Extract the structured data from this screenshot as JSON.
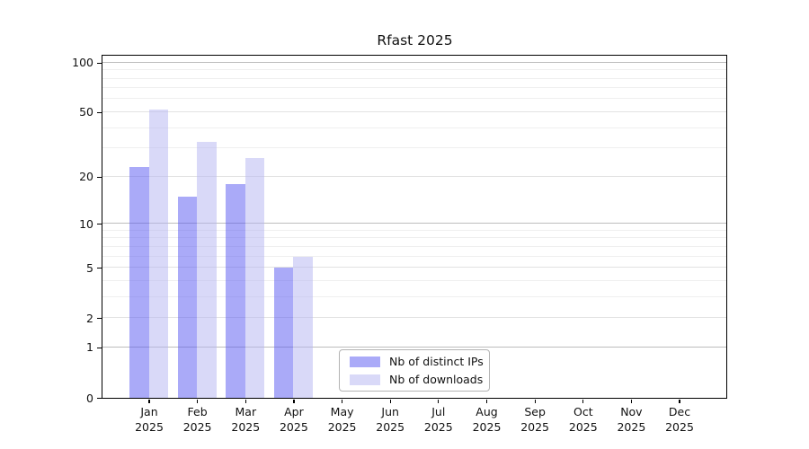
{
  "chart_data": {
    "type": "bar",
    "title": "Rfast 2025",
    "x_categories": [
      "Jan",
      "Feb",
      "Mar",
      "Apr",
      "May",
      "Jun",
      "Jul",
      "Aug",
      "Sep",
      "Oct",
      "Nov",
      "Dec"
    ],
    "x_year_label": "2025",
    "series": [
      {
        "name": "Nb of distinct IPs",
        "color_solid": "#aaaaf8",
        "color_fill": "rgba(86,86,242,0.5)",
        "values": [
          23,
          15,
          18,
          5,
          0,
          0,
          0,
          0,
          0,
          0,
          0,
          0
        ]
      },
      {
        "name": "Nb of downloads",
        "color_solid": "#d9d9f8",
        "color_fill": "rgba(180,180,242,0.5)",
        "values": [
          52,
          33,
          26,
          6,
          0,
          0,
          0,
          0,
          0,
          0,
          0,
          0
        ]
      }
    ],
    "y_scale": "log1p",
    "y_major_ticks": [
      0,
      1,
      2,
      5,
      10,
      20,
      50,
      100
    ],
    "y_half_gridlines": [
      2,
      5,
      20,
      50
    ],
    "y_decade_gridlines": [
      1,
      10,
      100
    ],
    "y_minor_gridlines": [
      3,
      4,
      6,
      7,
      8,
      9,
      30,
      40,
      60,
      70,
      80,
      90
    ],
    "ylim": [
      0,
      110
    ],
    "grid": true,
    "legend_position": "lower center-right inside"
  },
  "colors": {
    "background": "#ffffff",
    "axis": "#000000",
    "grid_decade": "#bdbdbd",
    "grid_half": "#e2e2e2",
    "grid_minor": "#efefef",
    "text": "#111111",
    "legend_border": "#b3b3b3"
  }
}
